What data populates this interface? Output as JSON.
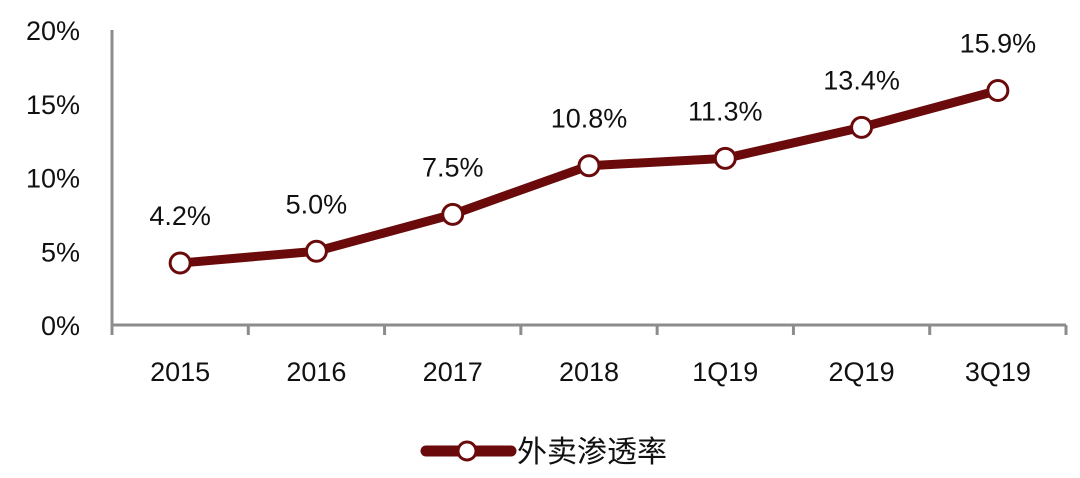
{
  "chart_data": {
    "type": "line",
    "title": "",
    "xlabel": "",
    "ylabel": "",
    "categories": [
      "2015",
      "2016",
      "2017",
      "2018",
      "1Q19",
      "2Q19",
      "3Q19"
    ],
    "series": [
      {
        "name": "外卖渗透率",
        "values": [
          4.2,
          5.0,
          7.5,
          10.8,
          11.3,
          13.4,
          15.9
        ],
        "labels": [
          "4.2%",
          "5.0%",
          "7.5%",
          "10.8%",
          "11.3%",
          "13.4%",
          "15.9%"
        ],
        "color": "#6b0a0a"
      }
    ],
    "ylim": [
      0,
      20
    ],
    "yticks": [
      "0%",
      "5%",
      "10%",
      "15%",
      "20%"
    ],
    "grid": false,
    "legend_position": "bottom"
  },
  "colors": {
    "line": "#6b0a0a",
    "marker_fill": "#ffffff",
    "axis": "#8c8c8c",
    "text": "#111111"
  }
}
